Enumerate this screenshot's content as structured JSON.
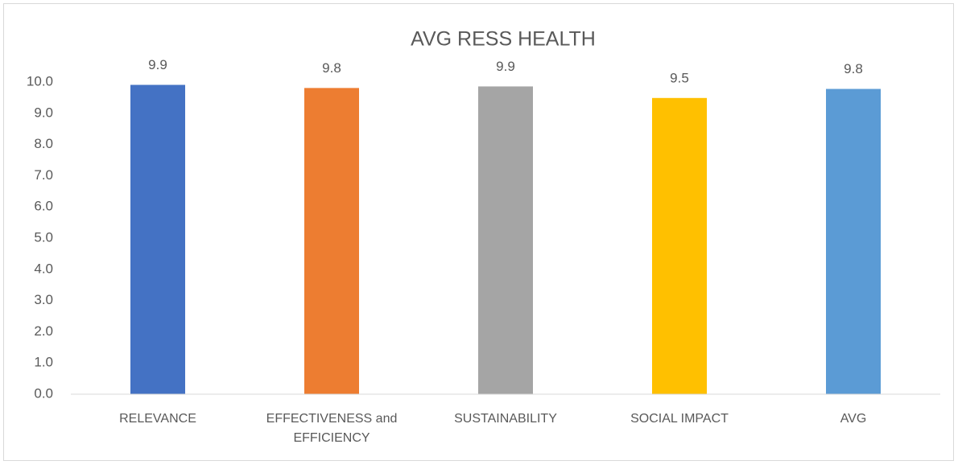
{
  "chart_data": {
    "type": "bar",
    "title": "AVG RESS HEALTH",
    "categories": [
      "RELEVANCE",
      "EFFECTIVENESS and EFFICIENCY",
      "SUSTAINABILITY",
      "SOCIAL IMPACT",
      "AVG"
    ],
    "values": [
      9.91,
      9.81,
      9.86,
      9.49,
      9.78
    ],
    "value_labels": [
      "9.9",
      "9.8",
      "9.9",
      "9.5",
      "9.8"
    ],
    "colors": [
      "#4472c4",
      "#ed7d31",
      "#a5a5a5",
      "#ffc000",
      "#5b9bd5"
    ],
    "ylim": [
      0,
      10
    ],
    "yticks": [
      {
        "value": 0,
        "label": "0.0"
      },
      {
        "value": 1,
        "label": "1.0"
      },
      {
        "value": 2,
        "label": "2.0"
      },
      {
        "value": 3,
        "label": "3.0"
      },
      {
        "value": 4,
        "label": "4.0"
      },
      {
        "value": 5,
        "label": "5.0"
      },
      {
        "value": 6,
        "label": "6.0"
      },
      {
        "value": 7,
        "label": "7.0"
      },
      {
        "value": 8,
        "label": "8.0"
      },
      {
        "value": 9,
        "label": "9.0"
      },
      {
        "value": 10,
        "label": "10.0"
      }
    ],
    "grid": false
  }
}
